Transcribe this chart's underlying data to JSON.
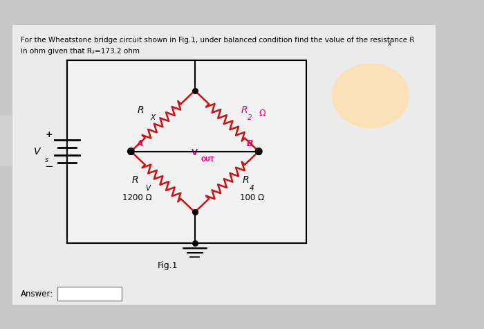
{
  "bg_color": "#c8c8c8",
  "panel_color": "#ebebeb",
  "circuit_box_color": "#f0f0f0",
  "pink_color": "#e8007a",
  "wire_color": "#000000",
  "resistor_color": "#cc1111",
  "title_line1": "For the Wheatstone bridge circuit shown in Fig.1, under balanced condition find the value of the resistance R",
  "title_line1_sub": "x",
  "title_line2": "in ohm given that R₂=173.2 ohm",
  "fig_label": "Fig.1",
  "answer_label": "Answer:",
  "Rx_label": "R",
  "Rx_sub": "X",
  "R2_label": "R",
  "R2_sub": "2",
  "R2_ohm": "Ω",
  "Rv_label": "R",
  "Rv_sub": "V",
  "Rv_value": "1200 Ω",
  "R4_label": "R",
  "R4_sub": "4",
  "R4_value": "100 Ω",
  "Vs_label": "V",
  "Vs_sub": "s",
  "Vout_label": "V",
  "Vout_sub": "OUT",
  "A_label": "A",
  "B_label": "B",
  "plus_label": "+",
  "minus_label": "−",
  "highlight_color": "#ffe0b0"
}
